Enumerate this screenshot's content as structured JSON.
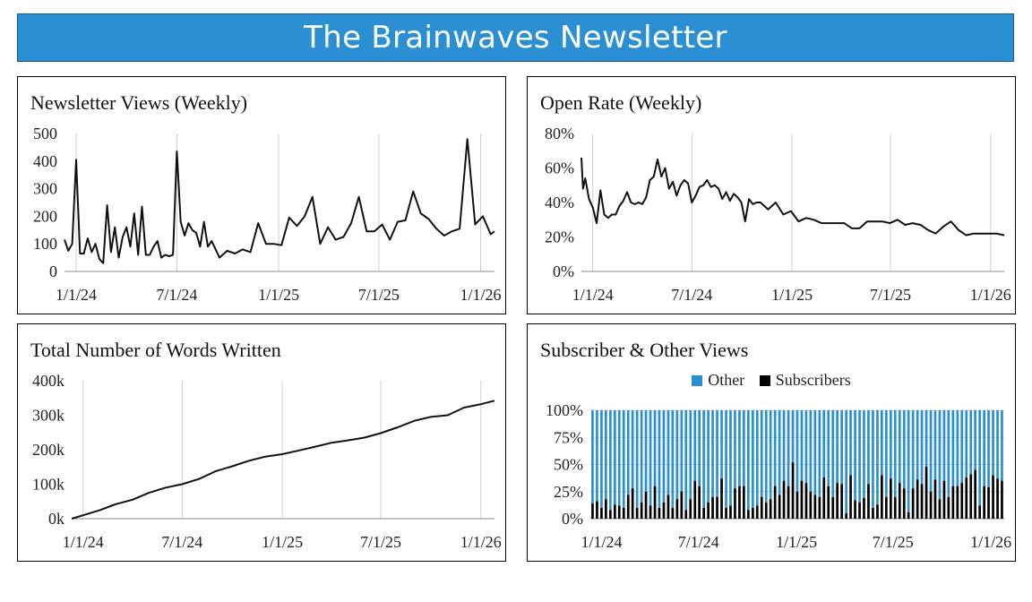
{
  "header": {
    "title": "The Brainwaves Newsletter"
  },
  "colors": {
    "banner": "#2b8fd4",
    "line": "#111111",
    "grid": "#cccccc",
    "other": "#2b8fd4",
    "subscribers": "#000000"
  },
  "chart_data": [
    {
      "id": "views",
      "type": "line",
      "title": "Newsletter Views (Weekly)",
      "xlabel": "",
      "ylabel": "",
      "x_ticks": [
        "1/1/24",
        "7/1/24",
        "1/1/25",
        "7/1/25",
        "1/1/26"
      ],
      "y_ticks": [
        "0",
        "100",
        "200",
        "300",
        "400",
        "500"
      ],
      "ylim": [
        0,
        500
      ],
      "grid": "vertical",
      "x_range": [
        "2023-12-11",
        "2026-01-26"
      ],
      "series": [
        {
          "x": [
            "2023-12-11",
            "2023-12-18",
            "2023-12-25",
            "2024-01-01",
            "2024-01-08",
            "2024-01-15",
            "2024-01-22",
            "2024-01-29",
            "2024-02-05",
            "2024-02-12",
            "2024-02-19",
            "2024-02-26",
            "2024-03-04",
            "2024-03-11",
            "2024-03-18",
            "2024-03-25",
            "2024-04-01",
            "2024-04-08",
            "2024-04-15",
            "2024-04-22",
            "2024-04-29",
            "2024-05-06",
            "2024-05-13",
            "2024-05-20",
            "2024-05-27",
            "2024-06-03",
            "2024-06-10",
            "2024-06-17",
            "2024-06-24",
            "2024-07-01",
            "2024-07-08",
            "2024-07-15",
            "2024-07-22",
            "2024-07-29",
            "2024-08-05",
            "2024-08-12",
            "2024-08-19",
            "2024-08-26",
            "2024-09-02",
            "2024-09-16",
            "2024-09-30",
            "2024-10-14",
            "2024-10-28",
            "2024-11-11",
            "2024-11-25",
            "2024-12-09",
            "2024-12-23",
            "2025-01-06",
            "2025-01-20",
            "2025-02-03",
            "2025-02-17",
            "2025-03-03",
            "2025-03-17",
            "2025-03-31",
            "2025-04-14",
            "2025-04-28",
            "2025-05-12",
            "2025-05-26",
            "2025-06-09",
            "2025-06-23",
            "2025-07-07",
            "2025-07-21",
            "2025-08-04",
            "2025-08-18",
            "2025-09-01",
            "2025-09-15",
            "2025-09-29",
            "2025-10-13",
            "2025-10-27",
            "2025-11-10",
            "2025-11-24",
            "2025-12-08",
            "2025-12-22",
            "2026-01-05",
            "2026-01-19",
            "2026-01-26"
          ],
          "y": [
            115,
            75,
            100,
            405,
            65,
            65,
            120,
            70,
            100,
            45,
            30,
            240,
            70,
            160,
            50,
            125,
            160,
            90,
            210,
            60,
            235,
            60,
            60,
            90,
            110,
            50,
            60,
            55,
            60,
            435,
            180,
            130,
            175,
            150,
            140,
            90,
            180,
            90,
            110,
            50,
            75,
            65,
            80,
            70,
            175,
            100,
            100,
            95,
            195,
            165,
            200,
            270,
            100,
            160,
            115,
            125,
            175,
            270,
            145,
            145,
            170,
            115,
            180,
            185,
            290,
            210,
            190,
            155,
            130,
            145,
            155,
            480,
            170,
            200,
            135,
            145
          ]
        }
      ]
    },
    {
      "id": "open",
      "type": "line",
      "title": "Open Rate (Weekly)",
      "xlabel": "",
      "ylabel": "",
      "x_ticks": [
        "1/1/24",
        "7/1/24",
        "1/1/25",
        "7/1/25",
        "1/1/26"
      ],
      "y_ticks": [
        "0%",
        "20%",
        "40%",
        "60%",
        "80%"
      ],
      "ylim": [
        0,
        0.8
      ],
      "grid": "vertical",
      "x_range": [
        "2023-12-11",
        "2026-01-26"
      ],
      "series": [
        {
          "x": [
            "2023-12-11",
            "2023-12-14",
            "2023-12-18",
            "2023-12-25",
            "2024-01-01",
            "2024-01-08",
            "2024-01-15",
            "2024-01-22",
            "2024-01-29",
            "2024-02-05",
            "2024-02-12",
            "2024-02-19",
            "2024-02-26",
            "2024-03-04",
            "2024-03-11",
            "2024-03-18",
            "2024-03-25",
            "2024-04-01",
            "2024-04-08",
            "2024-04-15",
            "2024-04-22",
            "2024-04-29",
            "2024-05-06",
            "2024-05-13",
            "2024-05-20",
            "2024-05-27",
            "2024-06-03",
            "2024-06-10",
            "2024-06-17",
            "2024-06-24",
            "2024-07-01",
            "2024-07-08",
            "2024-07-15",
            "2024-07-22",
            "2024-07-29",
            "2024-08-05",
            "2024-08-12",
            "2024-08-19",
            "2024-08-26",
            "2024-09-02",
            "2024-09-09",
            "2024-09-16",
            "2024-09-23",
            "2024-09-30",
            "2024-10-07",
            "2024-10-14",
            "2024-10-21",
            "2024-10-28",
            "2024-11-04",
            "2024-11-18",
            "2024-12-02",
            "2024-12-16",
            "2024-12-30",
            "2025-01-13",
            "2025-01-27",
            "2025-02-10",
            "2025-02-24",
            "2025-03-10",
            "2025-03-24",
            "2025-04-07",
            "2025-04-21",
            "2025-05-05",
            "2025-05-19",
            "2025-06-02",
            "2025-06-16",
            "2025-06-30",
            "2025-07-14",
            "2025-07-28",
            "2025-08-11",
            "2025-08-25",
            "2025-09-08",
            "2025-09-22",
            "2025-10-06",
            "2025-10-20",
            "2025-11-03",
            "2025-11-17",
            "2025-12-01",
            "2025-12-15",
            "2025-12-29",
            "2026-01-12",
            "2026-01-26"
          ],
          "y": [
            0.66,
            0.48,
            0.54,
            0.42,
            0.37,
            0.28,
            0.47,
            0.33,
            0.31,
            0.33,
            0.33,
            0.38,
            0.41,
            0.46,
            0.4,
            0.39,
            0.4,
            0.39,
            0.43,
            0.53,
            0.55,
            0.65,
            0.55,
            0.6,
            0.48,
            0.52,
            0.44,
            0.5,
            0.53,
            0.51,
            0.4,
            0.44,
            0.49,
            0.5,
            0.53,
            0.49,
            0.5,
            0.48,
            0.42,
            0.46,
            0.41,
            0.45,
            0.43,
            0.4,
            0.29,
            0.42,
            0.39,
            0.4,
            0.4,
            0.36,
            0.4,
            0.33,
            0.35,
            0.29,
            0.31,
            0.3,
            0.28,
            0.28,
            0.28,
            0.28,
            0.25,
            0.25,
            0.29,
            0.29,
            0.29,
            0.28,
            0.3,
            0.27,
            0.28,
            0.27,
            0.24,
            0.22,
            0.26,
            0.29,
            0.24,
            0.21,
            0.22,
            0.22,
            0.22,
            0.22,
            0.21
          ]
        }
      ]
    },
    {
      "id": "words",
      "type": "line",
      "title": "Total Number of Words Written",
      "xlabel": "",
      "ylabel": "",
      "x_ticks": [
        "1/1/24",
        "7/1/24",
        "1/1/25",
        "7/1/25",
        "1/1/26"
      ],
      "y_ticks": [
        "0k",
        "100k",
        "200k",
        "300k",
        "400k"
      ],
      "ylim": [
        0,
        400
      ],
      "grid": "vertical",
      "x_range": [
        "2023-12-11",
        "2026-01-26"
      ],
      "series": [
        {
          "x": [
            "2023-12-11",
            "2024-01-01",
            "2024-02-01",
            "2024-03-01",
            "2024-04-01",
            "2024-05-01",
            "2024-06-01",
            "2024-07-01",
            "2024-08-01",
            "2024-09-01",
            "2024-10-01",
            "2024-11-01",
            "2024-12-01",
            "2025-01-01",
            "2025-02-01",
            "2025-03-01",
            "2025-04-01",
            "2025-05-01",
            "2025-06-01",
            "2025-07-01",
            "2025-08-01",
            "2025-09-01",
            "2025-10-01",
            "2025-11-01",
            "2025-12-01",
            "2026-01-01",
            "2026-01-26"
          ],
          "y": [
            0,
            10,
            25,
            42,
            55,
            75,
            90,
            100,
            115,
            138,
            152,
            168,
            180,
            187,
            198,
            208,
            220,
            227,
            235,
            248,
            265,
            284,
            295,
            300,
            322,
            332,
            342
          ]
        }
      ]
    },
    {
      "id": "split",
      "type": "bar",
      "stacked": true,
      "title": "Subscriber & Other Views",
      "legend": [
        "Other",
        "Subscribers"
      ],
      "legend_position": "top-center",
      "x_ticks": [
        "1/1/24",
        "7/1/24",
        "1/1/25",
        "7/1/25",
        "1/1/26"
      ],
      "y_ticks": [
        "0%",
        "25%",
        "50%",
        "75%",
        "100%"
      ],
      "ylim": [
        0,
        1
      ],
      "x_range": [
        "2023-12-11",
        "2026-01-26"
      ],
      "series": [
        {
          "name": "Subscribers",
          "values": [
            0.14,
            0.16,
            0.1,
            0.18,
            0.08,
            0.13,
            0.12,
            0.1,
            0.22,
            0.28,
            0.1,
            0.15,
            0.25,
            0.12,
            0.3,
            0.1,
            0.15,
            0.22,
            0.1,
            0.18,
            0.25,
            0.08,
            0.18,
            0.35,
            0.3,
            0.1,
            0.15,
            0.2,
            0.2,
            0.37,
            0.1,
            0.12,
            0.28,
            0.3,
            0.3,
            0.08,
            0.1,
            0.12,
            0.2,
            0.15,
            0.18,
            0.3,
            0.22,
            0.35,
            0.3,
            0.52,
            0.25,
            0.35,
            0.33,
            0.25,
            0.22,
            0.2,
            0.38,
            0.3,
            0.2,
            0.33,
            0.32,
            0.05,
            0.4,
            0.17,
            0.15,
            0.19,
            0.32,
            0.1,
            0.13,
            0.4,
            0.2,
            0.37,
            0.2,
            0.33,
            0.28,
            0.06,
            0.28,
            0.36,
            0.32,
            0.48,
            0.25,
            0.36,
            0.18,
            0.35,
            0.2,
            0.3,
            0.3,
            0.33,
            0.38,
            0.41,
            0.45,
            0.12,
            0.3,
            0.29,
            0.4,
            0.37,
            0.35
          ]
        }
      ]
    }
  ]
}
